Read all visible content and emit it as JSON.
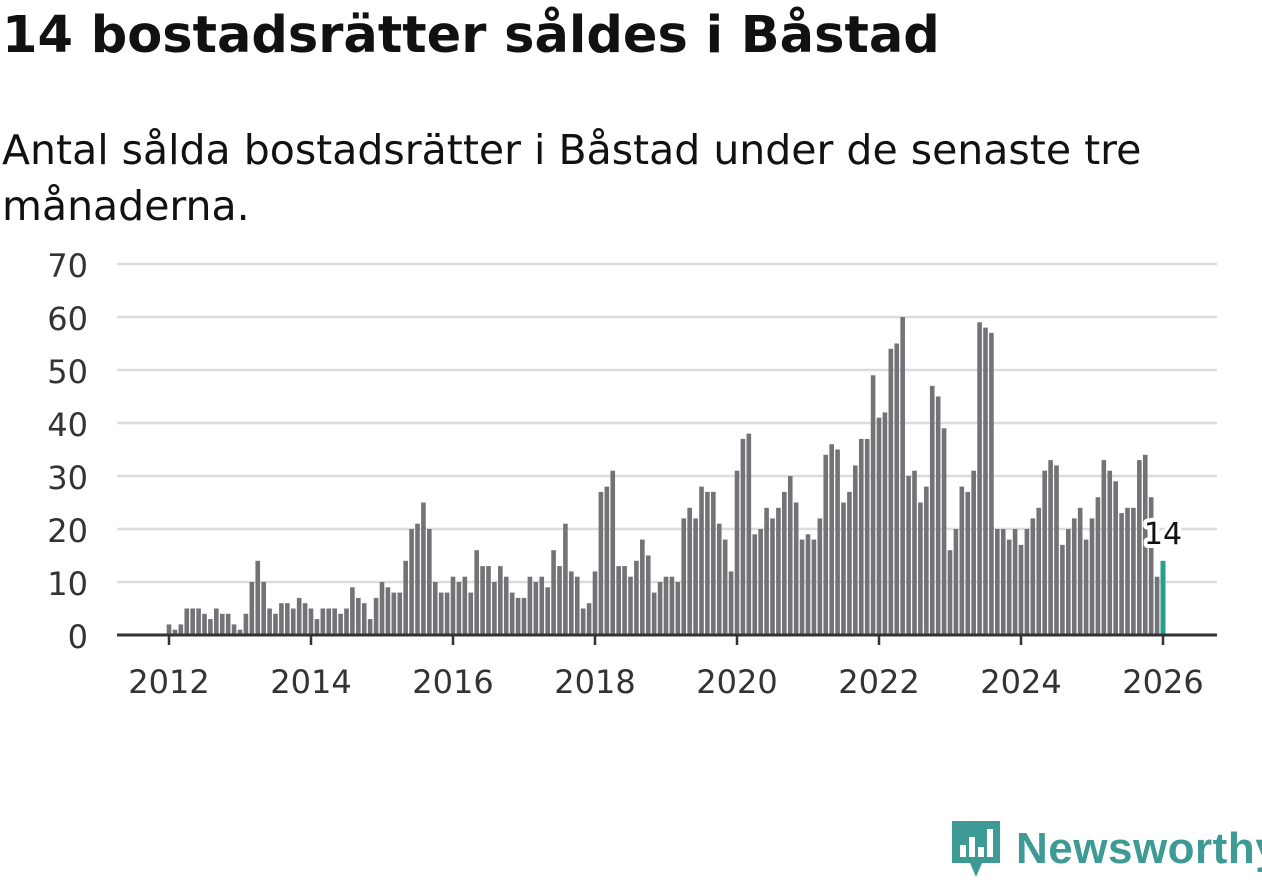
{
  "title": "14 bostadsrätter såldes i Båstad",
  "subtitle": "Antal sålda bostadsrätter i Båstad under de senaste tre månaderna.",
  "brand": {
    "name": "Newsworthy",
    "color": "#3d9a94",
    "icon": "newsworthy-logo-icon"
  },
  "chart_data": {
    "type": "bar",
    "title": "14 bostadsrätter såldes i Båstad",
    "subtitle": "Antal sålda bostadsrätter i Båstad under de senaste tre månaderna.",
    "xlabel": "",
    "ylabel": "",
    "x_start": "2012-01",
    "x_step": "month",
    "xlim": [
      2011.3,
      2026.7
    ],
    "ylim": [
      0,
      70
    ],
    "y_ticks": [
      0,
      10,
      20,
      30,
      40,
      50,
      60,
      70
    ],
    "x_ticks": [
      "2012",
      "2014",
      "2016",
      "2018",
      "2020",
      "2022",
      "2024",
      "2026"
    ],
    "grid": true,
    "bar_color": "#737377",
    "highlight_color": "#2a9d8f",
    "highlight_label": "14",
    "values": [
      2,
      1,
      2,
      5,
      5,
      5,
      4,
      3,
      5,
      4,
      4,
      2,
      1,
      4,
      10,
      14,
      10,
      5,
      4,
      6,
      6,
      5,
      7,
      6,
      5,
      3,
      5,
      5,
      5,
      4,
      5,
      9,
      7,
      6,
      3,
      7,
      10,
      9,
      8,
      8,
      14,
      20,
      21,
      25,
      20,
      10,
      8,
      8,
      11,
      10,
      11,
      8,
      16,
      13,
      13,
      10,
      13,
      11,
      8,
      7,
      7,
      11,
      10,
      11,
      9,
      16,
      13,
      21,
      12,
      11,
      5,
      6,
      12,
      27,
      28,
      31,
      13,
      13,
      11,
      14,
      18,
      15,
      8,
      10,
      11,
      11,
      10,
      22,
      24,
      22,
      28,
      27,
      27,
      21,
      18,
      12,
      31,
      37,
      38,
      19,
      20,
      24,
      22,
      24,
      27,
      30,
      25,
      18,
      19,
      18,
      22,
      34,
      36,
      35,
      25,
      27,
      32,
      37,
      37,
      49,
      41,
      42,
      54,
      55,
      60,
      30,
      31,
      25,
      28,
      47,
      45,
      39,
      16,
      20,
      28,
      27,
      31,
      59,
      58,
      57,
      20,
      20,
      18,
      20,
      17,
      20,
      22,
      24,
      31,
      33,
      32,
      17,
      20,
      22,
      24,
      18,
      22,
      26,
      33,
      31,
      29,
      23,
      24,
      24,
      33,
      34,
      26,
      11,
      14
    ]
  }
}
